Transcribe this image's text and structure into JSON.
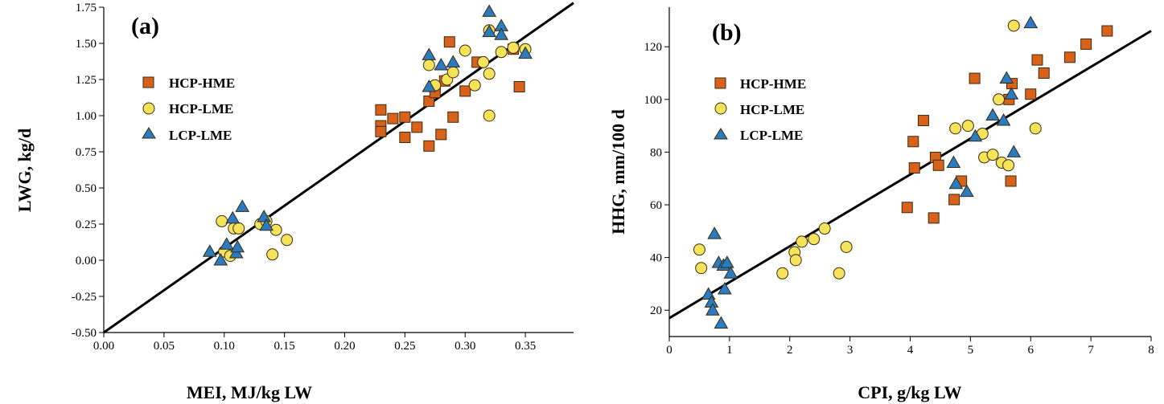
{
  "colors": {
    "HCP-HME": "#d9621a",
    "HCP-LME": "#f5e35a",
    "LCP-LME": "#2a7bbf",
    "outline": "#3a2a10",
    "line": "#000000"
  },
  "chart_data": [
    {
      "type": "scatter",
      "panel_label": "(a)",
      "xlabel": "MEI, MJ/kg LW",
      "ylabel": "LWG, kg/d",
      "xlim": [
        0,
        0.39
      ],
      "ylim": [
        -0.5,
        1.75
      ],
      "xticks": [
        0,
        0.05,
        0.1,
        0.15,
        0.2,
        0.25,
        0.3,
        0.35
      ],
      "xtick_labels": [
        "0.00",
        "0.05",
        "0.10",
        "0.15",
        "0.20",
        "0.25",
        "0.30",
        "0.35"
      ],
      "yticks": [
        -0.5,
        -0.25,
        0,
        0.25,
        0.5,
        0.75,
        1.0,
        1.25,
        1.5,
        1.75
      ],
      "ytick_labels": [
        "-0.50",
        "-0.25",
        "0.00",
        "0.25",
        "0.50",
        "0.75",
        "1.00",
        "1.25",
        "1.50",
        "1.75"
      ],
      "legend": [
        "HCP-HME",
        "HCP-LME",
        "LCP-LME"
      ],
      "legend_position": "upper-left",
      "grid": false,
      "regression": {
        "x0": 0.0,
        "y0": -0.5,
        "x1": 0.39,
        "y1": 1.78
      },
      "series": [
        {
          "name": "HCP-HME",
          "marker": "square",
          "points": [
            [
              0.23,
              1.04
            ],
            [
              0.23,
              0.93
            ],
            [
              0.23,
              0.89
            ],
            [
              0.24,
              0.98
            ],
            [
              0.25,
              0.99
            ],
            [
              0.25,
              0.85
            ],
            [
              0.26,
              0.92
            ],
            [
              0.27,
              1.1
            ],
            [
              0.27,
              0.79
            ],
            [
              0.275,
              1.2
            ],
            [
              0.275,
              1.16
            ],
            [
              0.28,
              0.87
            ],
            [
              0.283,
              1.24
            ],
            [
              0.287,
              1.51
            ],
            [
              0.29,
              0.99
            ],
            [
              0.3,
              1.17
            ],
            [
              0.31,
              1.37
            ],
            [
              0.34,
              1.46
            ],
            [
              0.345,
              1.2
            ]
          ]
        },
        {
          "name": "HCP-LME",
          "marker": "circle",
          "points": [
            [
              0.098,
              0.27
            ],
            [
              0.1,
              0.06
            ],
            [
              0.105,
              0.03
            ],
            [
              0.108,
              0.22
            ],
            [
              0.112,
              0.22
            ],
            [
              0.13,
              0.25
            ],
            [
              0.135,
              0.27
            ],
            [
              0.14,
              0.04
            ],
            [
              0.143,
              0.21
            ],
            [
              0.152,
              0.14
            ],
            [
              0.27,
              1.35
            ],
            [
              0.275,
              1.21
            ],
            [
              0.285,
              1.25
            ],
            [
              0.29,
              1.3
            ],
            [
              0.3,
              1.45
            ],
            [
              0.308,
              1.21
            ],
            [
              0.315,
              1.37
            ],
            [
              0.32,
              1.59
            ],
            [
              0.32,
              1.29
            ],
            [
              0.32,
              1.0
            ],
            [
              0.33,
              1.44
            ],
            [
              0.34,
              1.47
            ],
            [
              0.35,
              1.46
            ]
          ]
        },
        {
          "name": "LCP-LME",
          "marker": "triangle",
          "points": [
            [
              0.088,
              0.06
            ],
            [
              0.097,
              0.0
            ],
            [
              0.102,
              0.11
            ],
            [
              0.107,
              0.29
            ],
            [
              0.11,
              0.05
            ],
            [
              0.111,
              0.09
            ],
            [
              0.115,
              0.37
            ],
            [
              0.133,
              0.3
            ],
            [
              0.135,
              0.24
            ],
            [
              0.27,
              1.42
            ],
            [
              0.27,
              1.2
            ],
            [
              0.28,
              1.35
            ],
            [
              0.29,
              1.37
            ],
            [
              0.32,
              1.72
            ],
            [
              0.32,
              1.58
            ],
            [
              0.33,
              1.62
            ],
            [
              0.33,
              1.56
            ],
            [
              0.35,
              1.43
            ]
          ]
        }
      ]
    },
    {
      "type": "scatter",
      "panel_label": "(b)",
      "xlabel": "CPI, g/kg LW",
      "ylabel": "HHG, mm/100 d",
      "xlim": [
        0,
        8
      ],
      "ylim": [
        10,
        135
      ],
      "xticks": [
        0,
        1,
        2,
        3,
        4,
        5,
        6,
        7,
        8
      ],
      "xtick_labels": [
        "0",
        "1",
        "2",
        "3",
        "4",
        "5",
        "6",
        "7",
        "8"
      ],
      "yticks": [
        20,
        40,
        60,
        80,
        100,
        120
      ],
      "ytick_labels": [
        "20",
        "40",
        "60",
        "80",
        "100",
        "120"
      ],
      "legend": [
        "HCP-HME",
        "HCP-LME",
        "LCP-LME"
      ],
      "legend_position": "upper-left",
      "grid": false,
      "regression": {
        "x0": 0.0,
        "y0": 17,
        "x1": 8.0,
        "y1": 126
      },
      "series": [
        {
          "name": "HCP-HME",
          "marker": "square",
          "points": [
            [
              3.95,
              59
            ],
            [
              4.05,
              84
            ],
            [
              4.07,
              74
            ],
            [
              4.22,
              92
            ],
            [
              4.39,
              55
            ],
            [
              4.42,
              78
            ],
            [
              4.47,
              75
            ],
            [
              4.73,
              62
            ],
            [
              4.85,
              69
            ],
            [
              5.07,
              108
            ],
            [
              5.64,
              100
            ],
            [
              5.67,
              69
            ],
            [
              5.69,
              106
            ],
            [
              6.0,
              102
            ],
            [
              6.11,
              115
            ],
            [
              6.22,
              110
            ],
            [
              6.65,
              116
            ],
            [
              6.92,
              121
            ],
            [
              7.27,
              126
            ]
          ]
        },
        {
          "name": "HCP-LME",
          "marker": "circle",
          "points": [
            [
              0.5,
              43
            ],
            [
              0.53,
              36
            ],
            [
              1.88,
              34
            ],
            [
              2.08,
              42
            ],
            [
              2.1,
              39
            ],
            [
              2.2,
              46
            ],
            [
              2.4,
              47
            ],
            [
              2.58,
              51
            ],
            [
              2.82,
              34
            ],
            [
              2.94,
              44
            ],
            [
              4.75,
              89
            ],
            [
              4.96,
              90
            ],
            [
              5.2,
              87
            ],
            [
              5.23,
              78
            ],
            [
              5.37,
              79
            ],
            [
              5.47,
              100
            ],
            [
              5.52,
              76
            ],
            [
              5.63,
              75
            ],
            [
              5.72,
              128
            ],
            [
              6.08,
              89
            ]
          ]
        },
        {
          "name": "LCP-LME",
          "marker": "triangle",
          "points": [
            [
              0.65,
              26
            ],
            [
              0.7,
              23
            ],
            [
              0.72,
              20
            ],
            [
              0.75,
              49
            ],
            [
              0.82,
              38
            ],
            [
              0.86,
              15
            ],
            [
              0.9,
              37
            ],
            [
              0.92,
              28
            ],
            [
              0.96,
              38
            ],
            [
              1.02,
              34
            ],
            [
              4.72,
              76
            ],
            [
              4.76,
              68
            ],
            [
              4.94,
              65
            ],
            [
              5.08,
              86
            ],
            [
              5.37,
              94
            ],
            [
              5.55,
              92
            ],
            [
              5.6,
              108
            ],
            [
              5.68,
              102
            ],
            [
              5.72,
              80
            ],
            [
              6.0,
              129
            ]
          ]
        }
      ]
    }
  ]
}
